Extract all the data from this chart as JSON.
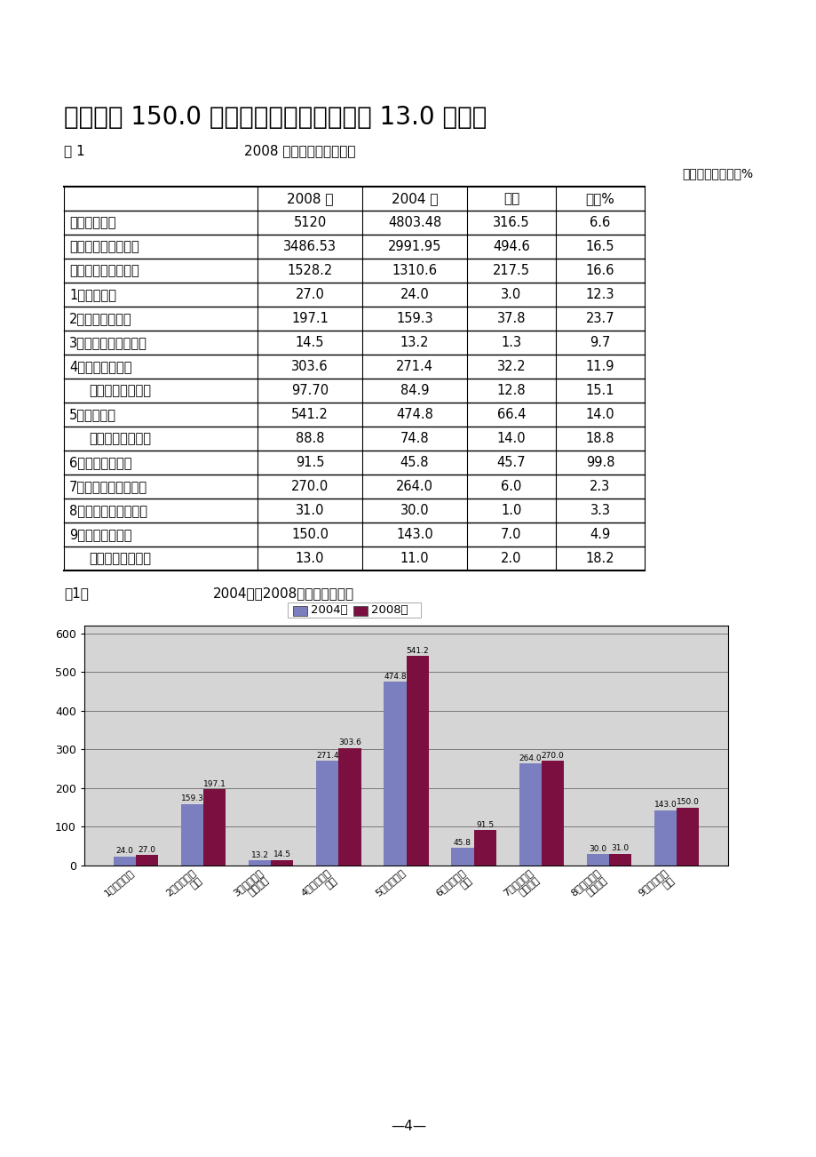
{
  "page_title": "技能人才 150.0 万人，其中高技能人才为 13.0 万人。",
  "table_title": "2008 年全省人才资源总数",
  "table_label": "表 1",
  "table_unit": "计量单位：万人、%",
  "table_headers": [
    "",
    "2008 年",
    "2004 年",
    "增加",
    "增长%"
  ],
  "table_rows": [
    [
      "年末常住人口",
      "5120",
      "4803.48",
      "316.5",
      "6.6"
    ],
    [
      "年末全社会从业人员",
      "3486.53",
      "2991.95",
      "494.6",
      "16.5"
    ],
    [
      "全社会各类人才总量",
      "1528.2",
      "1310.6",
      "217.5",
      "16.6"
    ],
    [
      "1、党政人才",
      "27.0",
      "24.0",
      "3.0",
      "12.3"
    ],
    [
      "2、企业经营人才",
      "197.1",
      "159.3",
      "37.8",
      "23.7"
    ],
    [
      "3、事业单位管理人才",
      "14.5",
      "13.2",
      "1.3",
      "9.7"
    ],
    [
      "4、专业技术人才",
      "303.6",
      "271.4",
      "32.2",
      "11.9"
    ],
    [
      "    其中：在管理岗位",
      "97.70",
      "84.9",
      "12.8",
      "15.1"
    ],
    [
      "5、技能人才",
      "541.2",
      "474.8",
      "66.4",
      "14.0"
    ],
    [
      "    其中：高技能人才",
      "88.8",
      "74.8",
      "14.0",
      "18.8"
    ],
    [
      "6、农村实用人才",
      "91.5",
      "45.8",
      "45.7",
      "99.8"
    ],
    [
      "7、个体经营管理人才",
      "270.0",
      "264.0",
      "6.0",
      "2.3"
    ],
    [
      "8、个体专业技术人才",
      "31.0",
      "30.0",
      "1.0",
      "3.3"
    ],
    [
      "9、个体技能人才",
      "150.0",
      "143.0",
      "7.0",
      "4.9"
    ],
    [
      "    其中：高技能人才",
      "13.0",
      "11.0",
      "2.0",
      "18.2"
    ]
  ],
  "chart_title": "2004年与2008年人才资源分布",
  "chart_label": "图1：",
  "chart_categories": [
    "1、党政人才",
    "2、企业经营\n人才",
    "3、事业单位\n管理人才",
    "4、专业技术\n人才",
    "5、技能人才",
    "6、农村实用\n人才",
    "7、个体经营\n管理人才",
    "8、个体专业\n技术人才",
    "9、个体技能\n人才"
  ],
  "chart_2004": [
    24.0,
    159.3,
    13.2,
    271.4,
    474.8,
    45.8,
    264.0,
    30.0,
    143.0
  ],
  "chart_2008": [
    27.0,
    197.1,
    14.5,
    303.6,
    541.2,
    91.5,
    270.0,
    31.0,
    150.0
  ],
  "bar_color_2004": "#7B7FBF",
  "bar_color_2008": "#7B1040",
  "legend_2004": "2004年",
  "legend_2008": "2008年",
  "page_number": "—4—",
  "bg_color": "#ffffff"
}
